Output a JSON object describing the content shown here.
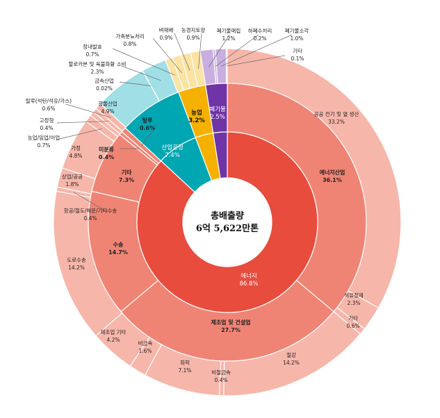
{
  "chart_data": {
    "type": "sunburst",
    "center": {
      "title": "총배출량",
      "value": "6억 5,622만톤"
    },
    "colors": {
      "energy_inner": "#e84c3d",
      "energy_mid": "#f08474",
      "energy_outer": "#f7b6aa",
      "industrial": "#00a6b2",
      "industrial_outer": "#9fdfe5",
      "agriculture": "#f5b000",
      "agriculture_outer": "#fbe3a3",
      "waste": "#6f34a5",
      "waste_outer": "#c9aee0"
    },
    "inner": [
      {
        "name": "에너지",
        "value": "86.8%",
        "share": 86.8,
        "color": "energy_inner"
      },
      {
        "name": "산업공정",
        "value": "7.4%",
        "share": 7.4,
        "color": "industrial"
      },
      {
        "name": "농업",
        "value": "3.2%",
        "share": 3.2,
        "color": "agriculture"
      },
      {
        "name": "폐기물",
        "value": "2.5%",
        "share": 2.5,
        "color": "waste"
      }
    ],
    "middle": [
      {
        "name": "에너지산업",
        "value": "36.1%",
        "share": 36.1,
        "color": "energy_mid"
      },
      {
        "name": "제조업 및 건설업",
        "value": "27.7%",
        "share": 27.7,
        "color": "energy_mid"
      },
      {
        "name": "수송",
        "value": "14.7%",
        "share": 14.7,
        "color": "energy_mid"
      },
      {
        "name": "기타",
        "value": "7.3%",
        "share": 7.3,
        "color": "energy_mid"
      },
      {
        "name": "미분류",
        "value": "0.4%",
        "share": 0.4,
        "color": "energy_mid"
      },
      {
        "name": "탈루",
        "value": "0.6%",
        "share": 0.6,
        "color": "energy_mid"
      },
      {
        "name": "산업공정",
        "value": "7.4%",
        "share": 7.4,
        "color": "industrial"
      },
      {
        "name": "농업",
        "value": "3.2%",
        "share": 3.2,
        "color": "agriculture"
      },
      {
        "name": "폐기물",
        "value": "2.5%",
        "share": 2.5,
        "color": "waste"
      }
    ],
    "outer": [
      {
        "name": "공공 전기 및 열 생산",
        "value": "33.2%",
        "share": 33.2,
        "color": "energy_outer"
      },
      {
        "name": "석유정제",
        "value": "2.3%",
        "share": 2.3,
        "color": "energy_outer"
      },
      {
        "name": "기타",
        "value": "0.6%",
        "share": 0.6,
        "color": "energy_outer"
      },
      {
        "name": "철강",
        "value": "14.2%",
        "share": 14.2,
        "color": "energy_outer"
      },
      {
        "name": "비철금속",
        "value": "0.4%",
        "share": 0.4,
        "color": "energy_outer"
      },
      {
        "name": "화학",
        "value": "7.1%",
        "share": 7.1,
        "color": "energy_outer"
      },
      {
        "name": "비금속",
        "value": "1.6%",
        "share": 1.6,
        "color": "energy_outer"
      },
      {
        "name": "제조업 기타",
        "value": "4.2%",
        "share": 4.2,
        "color": "energy_outer"
      },
      {
        "name": "도로수송",
        "value": "14.2%",
        "share": 14.2,
        "color": "energy_outer"
      },
      {
        "name": "항공/철도/해운/기타수송",
        "value": "0.4%",
        "share": 0.4,
        "color": "energy_outer"
      },
      {
        "name": "상업/공공",
        "value": "1.8%",
        "share": 1.8,
        "color": "energy_outer"
      },
      {
        "name": "가정",
        "value": "4.8%",
        "share": 4.8,
        "color": "energy_outer"
      },
      {
        "name": "농업/임업/어업",
        "value": "0.7%",
        "share": 0.7,
        "color": "energy_outer"
      },
      {
        "name": "미분류",
        "value": "",
        "share": 0.4,
        "color": "energy_outer"
      },
      {
        "name": "고정형",
        "value": "0.4%",
        "share": 0.4,
        "color": "energy_outer"
      },
      {
        "name": "탈루(석탄/석유/가스)",
        "value": "0.6%",
        "share": 0.6,
        "color": "energy_outer"
      },
      {
        "name": "광물산업",
        "value": "4.9%",
        "share": 4.9,
        "color": "industrial_outer"
      },
      {
        "name": "금속산업",
        "value": "0.02%",
        "share": 0.02,
        "color": "industrial_outer"
      },
      {
        "name": "할로카본 및 육불화황 소비",
        "value": "2.3%",
        "share": 2.3,
        "color": "industrial_outer"
      },
      {
        "name": "장내발효",
        "value": "0.7%",
        "share": 0.7,
        "color": "agriculture_outer"
      },
      {
        "name": "가축분뇨처리",
        "value": "0.8%",
        "share": 0.8,
        "color": "agriculture_outer"
      },
      {
        "name": "벼재배",
        "value": "0.9%",
        "share": 0.9,
        "color": "agriculture_outer"
      },
      {
        "name": "농경지토양",
        "value": "0.9%",
        "share": 0.9,
        "color": "agriculture_outer"
      },
      {
        "name": "폐기물매립",
        "value": "1.2%",
        "share": 1.2,
        "color": "waste_outer"
      },
      {
        "name": "하폐수처리",
        "value": "0.2%",
        "share": 0.2,
        "color": "waste_outer"
      },
      {
        "name": "폐기물소각",
        "value": "1.0%",
        "share": 1.0,
        "color": "waste_outer"
      },
      {
        "name": "기타",
        "value": "0.1%",
        "share": 0.1,
        "color": "waste_outer"
      }
    ]
  }
}
